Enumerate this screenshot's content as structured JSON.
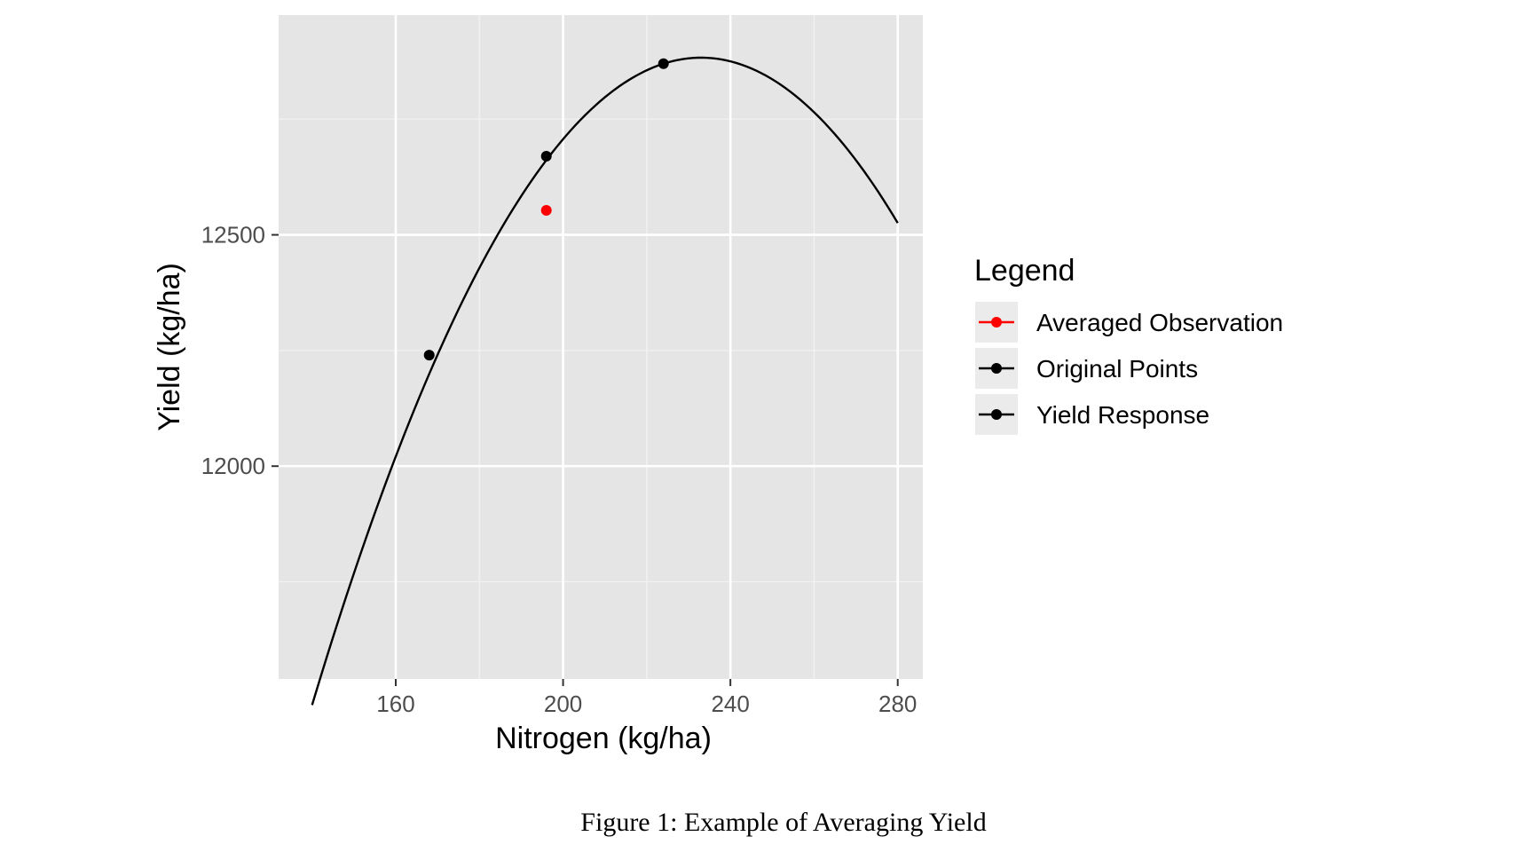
{
  "chart_data": {
    "type": "line",
    "title": "",
    "xlabel": "Nitrogen (kg/ha)",
    "ylabel": "Yield (kg/ha)",
    "xlim": [
      132,
      286
    ],
    "ylim": [
      11540,
      12975
    ],
    "x_ticks": [
      160,
      200,
      240,
      280
    ],
    "x_minor_ticks": [
      180,
      220,
      260
    ],
    "y_ticks": [
      12000,
      12500
    ],
    "y_minor_ticks": [
      11750,
      12250,
      12750
    ],
    "grid": true,
    "legend_position": "right",
    "legend_title": "Legend",
    "series": [
      {
        "name": "Yield Response",
        "kind": "line",
        "color": "#000000",
        "function": "quadratic",
        "x_domain": [
          140,
          280
        ],
        "peak_x": 233,
        "peak_y": 12883,
        "curvature": -0.1618
      },
      {
        "name": "Original Points",
        "kind": "points",
        "color": "#000000",
        "x": [
          168,
          196,
          224
        ],
        "y": [
          12240,
          12670,
          12870
        ]
      },
      {
        "name": "Averaged Observation",
        "kind": "points",
        "color": "#ff0000",
        "x": [
          196
        ],
        "y": [
          12553
        ]
      }
    ],
    "legend_entries": [
      {
        "label": "Averaged Observation",
        "color": "#ff0000"
      },
      {
        "label": "Original Points",
        "color": "#000000"
      },
      {
        "label": "Yield Response",
        "color": "#000000"
      }
    ]
  },
  "caption": "Figure 1: Example of Averaging Yield",
  "colors": {
    "panel_background": "#e5e5e5",
    "grid_major": "#ffffff",
    "grid_minor": "#f2f2f2",
    "legend_key_background": "#ebebeb"
  }
}
